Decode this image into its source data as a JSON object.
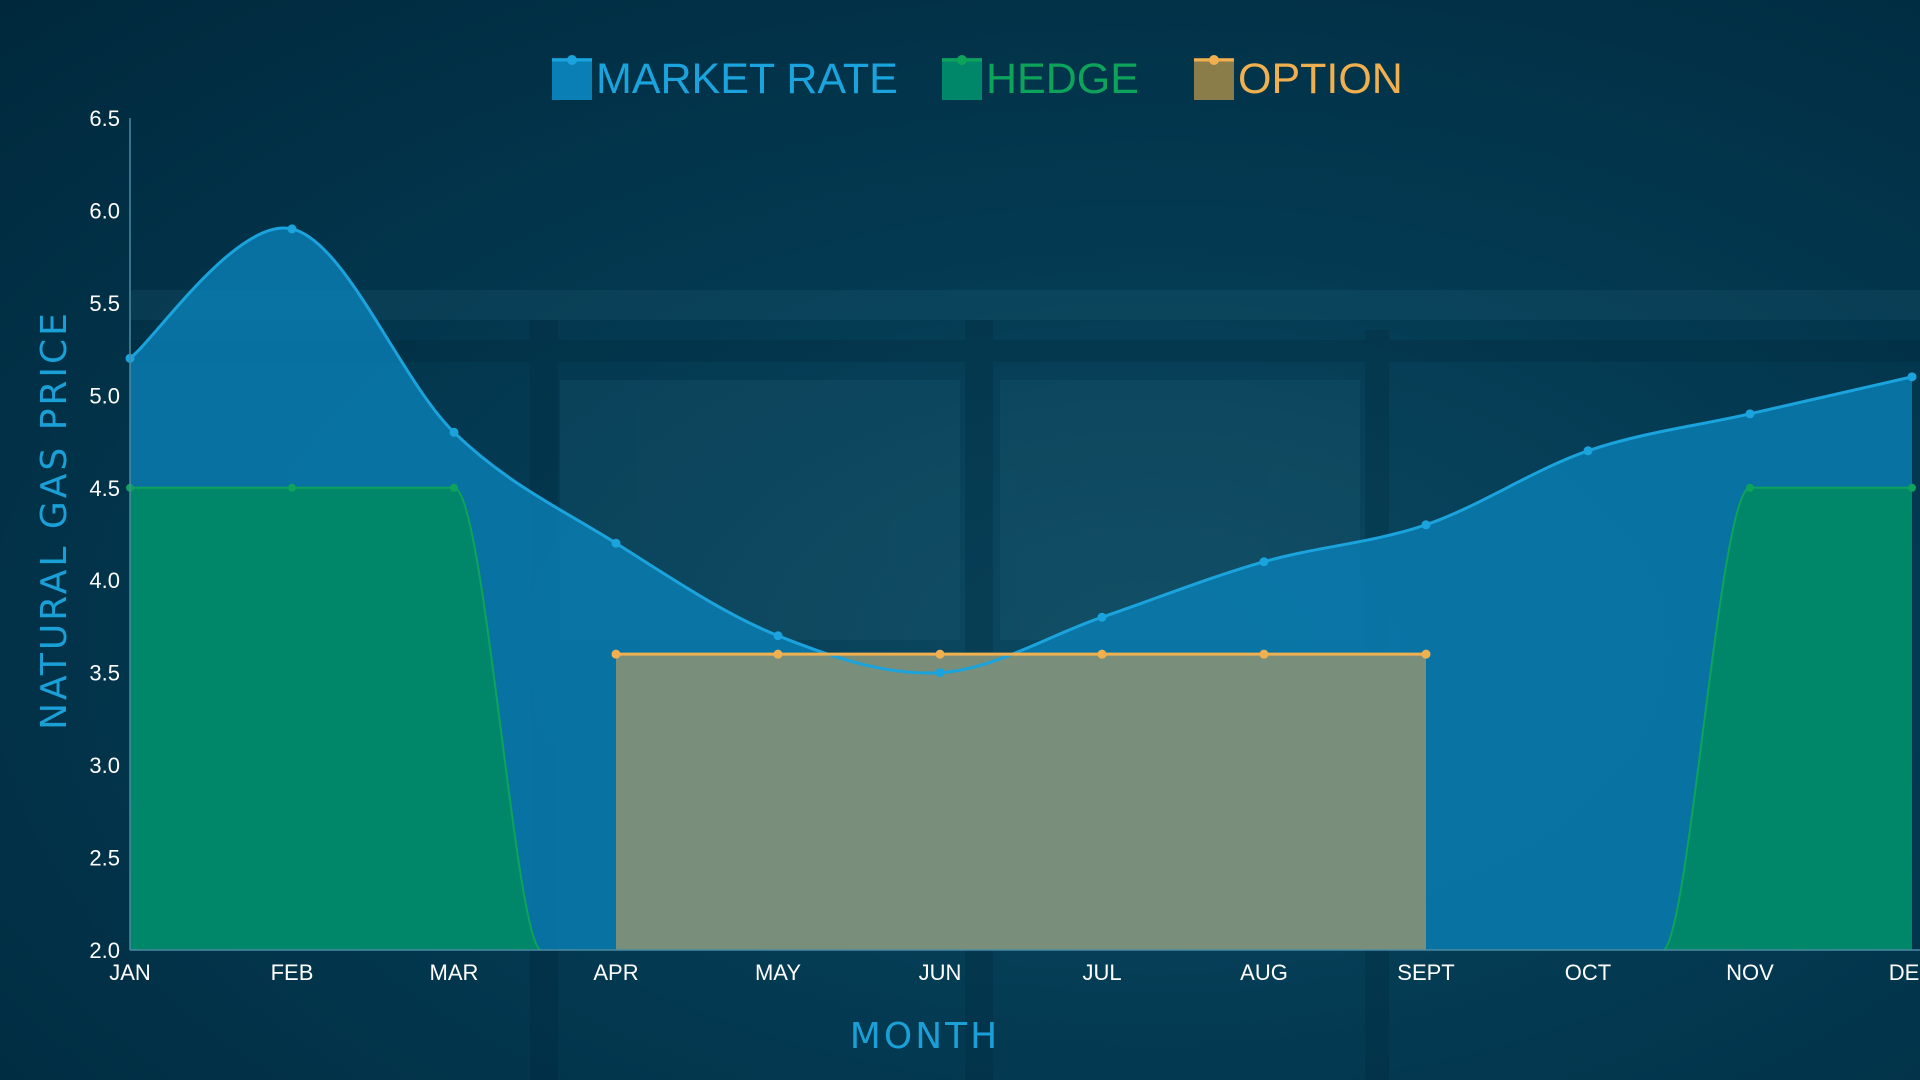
{
  "chart_data": {
    "type": "area",
    "title": "",
    "xlabel": "MONTH",
    "ylabel": "NATURAL GAS PRICE",
    "ylim": [
      2.0,
      6.5
    ],
    "y_ticks": [
      "2.0",
      "2.5",
      "3.0",
      "3.5",
      "4.0",
      "4.5",
      "5.0",
      "5.5",
      "6.0",
      "6.5"
    ],
    "categories": [
      "JAN",
      "FEB",
      "MAR",
      "APR",
      "MAY",
      "JUN",
      "JUL",
      "AUG",
      "SEPT",
      "OCT",
      "NOV",
      "DEC"
    ],
    "legend_position": "top-center",
    "grid": false,
    "series": [
      {
        "name": "MARKET RATE",
        "color": "#1aa3dc",
        "fill": "#0a7fb5",
        "values": [
          5.2,
          5.9,
          4.8,
          4.2,
          3.7,
          3.5,
          3.8,
          4.1,
          4.3,
          4.7,
          4.9,
          5.1
        ]
      },
      {
        "name": "HEDGE",
        "color": "#0ea35a",
        "fill": "#00876a",
        "values": [
          4.5,
          4.5,
          4.5,
          null,
          null,
          null,
          null,
          null,
          null,
          null,
          4.5,
          4.5
        ]
      },
      {
        "name": "OPTION",
        "color": "#f0b050",
        "fill": "#7e907a",
        "values": [
          null,
          null,
          null,
          3.6,
          3.6,
          3.6,
          3.6,
          3.6,
          3.6,
          null,
          null,
          null
        ]
      }
    ]
  }
}
